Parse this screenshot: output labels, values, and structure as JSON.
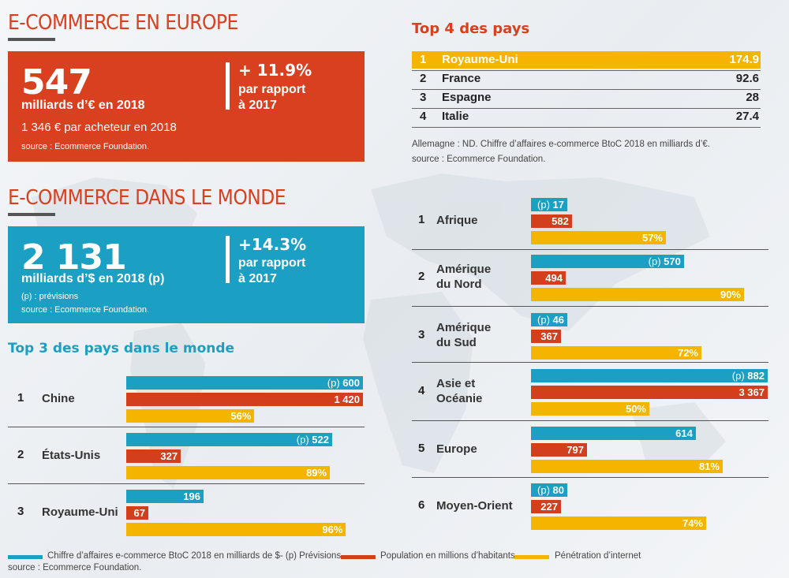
{
  "colors": {
    "orange_red": "#d9401f",
    "teal": "#1b9fc3",
    "red_bar": "#d33f1c",
    "yellow_bar": "#f5b400",
    "dark": "#222222"
  },
  "europe": {
    "title": "E-COMMERCE EN EUROPE",
    "big": "547",
    "unit": "milliards d’€ en 2018",
    "per_buyer": "1 346 € par acheteur en 2018",
    "source": "source : Ecommerce Foundation.",
    "growth": "+ 11.9%",
    "growth_l1": "par rapport",
    "growth_l2": "à 2017"
  },
  "world": {
    "title": "E-COMMERCE DANS LE MONDE",
    "big": "2 131",
    "unit": "milliards d’$ en 2018 (p)",
    "note": "(p) : prévisions",
    "source": "source : Ecommerce Foundation.",
    "growth": "+14.3%",
    "growth_l1": "par rapport",
    "growth_l2": "à 2017"
  },
  "top4": {
    "title": "Top 4 des pays",
    "rows": [
      {
        "rank": "1",
        "name": "Royaume-Uni",
        "value": "174.9"
      },
      {
        "rank": "2",
        "name": "France",
        "value": "92.6"
      },
      {
        "rank": "3",
        "name": "Espagne",
        "value": "28"
      },
      {
        "rank": "4",
        "name": "Italie",
        "value": "27.4"
      }
    ],
    "note": "Allemagne : ND. Chiffre d’affaires e-commerce BtoC 2018 en milliards d’€.",
    "source": "source : Ecommerce Foundation."
  },
  "top3_title": "Top 3 des pays dans le monde",
  "legend": {
    "teal": "Chiffre d’affaires e-commerce BtoC 2018 en milliards de $- (p) Prévisions.",
    "red": "Population en millions d’habitants",
    "yellow": "Pénétration d’internet",
    "source": "source : Ecommerce Foundation."
  },
  "chart_data": [
    {
      "type": "bar",
      "title": "Top 3 des pays dans le monde",
      "categories": [
        "Chine",
        "États-Unis",
        "Royaume-Uni"
      ],
      "ranks": [
        "1",
        "2",
        "3"
      ],
      "series": [
        {
          "name": "Chiffre d’affaires e-commerce BtoC 2018 en milliards de $- (p) Prévisions.",
          "values": [
            600,
            522,
            196
          ],
          "labels": [
            "600",
            "522",
            "196"
          ],
          "prevision": [
            true,
            true,
            false
          ]
        },
        {
          "name": "Population en millions d’habitants",
          "values": [
            1420,
            327,
            67
          ],
          "labels": [
            "1 420",
            "327",
            "67"
          ]
        },
        {
          "name": "Pénétration d’internet",
          "values": [
            56,
            89,
            96
          ],
          "labels": [
            "56%",
            "89%",
            "96%"
          ]
        }
      ]
    },
    {
      "type": "bar",
      "categories": [
        "Afrique",
        "Amérique du Nord",
        "Amérique du Sud",
        "Asie et Océanie",
        "Europe",
        "Moyen-Orient"
      ],
      "category_lines": [
        [
          "Afrique"
        ],
        [
          "Amérique",
          "du Nord"
        ],
        [
          "Amérique",
          "du Sud"
        ],
        [
          "Asie et",
          "Océanie"
        ],
        [
          "Europe"
        ],
        [
          "Moyen-Orient"
        ]
      ],
      "ranks": [
        "1",
        "2",
        "3",
        "4",
        "5",
        "6"
      ],
      "series": [
        {
          "name": "Chiffre d’affaires e-commerce BtoC 2018 en milliards de $- (p) Prévisions.",
          "values": [
            17,
            570,
            46,
            882,
            614,
            80
          ],
          "labels": [
            "17",
            "570",
            "46",
            "882",
            "614",
            "80"
          ],
          "prevision": [
            true,
            true,
            true,
            true,
            false,
            true
          ]
        },
        {
          "name": "Population en millions d’habitants",
          "values": [
            582,
            494,
            367,
            3367,
            797,
            227
          ],
          "labels": [
            "582",
            "494",
            "367",
            "3 367",
            "797",
            "227"
          ]
        },
        {
          "name": "Pénétration d’internet",
          "values": [
            57,
            90,
            72,
            50,
            81,
            74
          ],
          "labels": [
            "57%",
            "90%",
            "72%",
            "50%",
            "81%",
            "74%"
          ]
        }
      ]
    }
  ]
}
